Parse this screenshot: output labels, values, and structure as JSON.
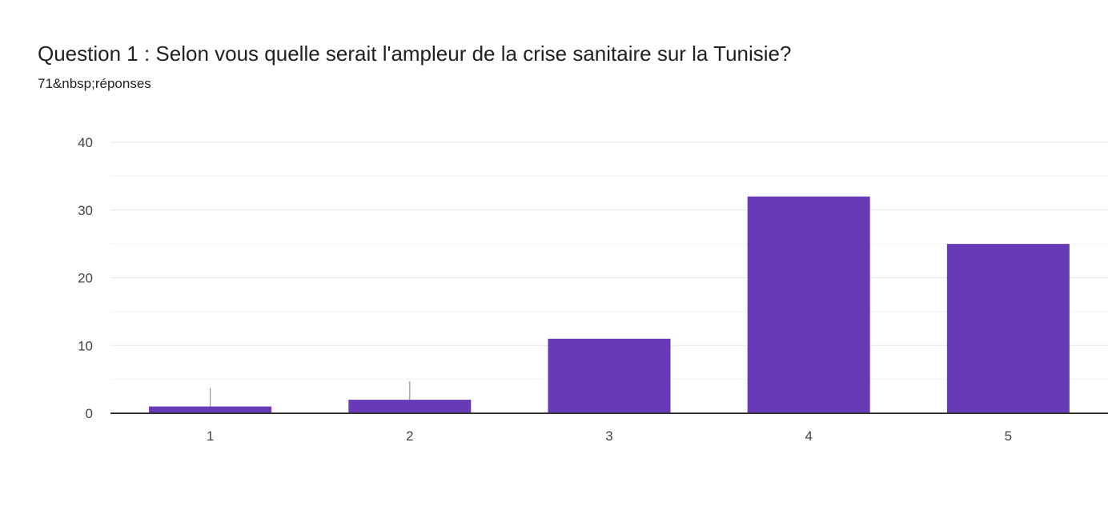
{
  "header": {
    "title": "Question 1 : Selon vous quelle serait l'ampleur de la crise sanitaire sur la Tunisie?",
    "subtitle": "71&nbsp;réponses"
  },
  "chart_data": {
    "type": "bar",
    "categories": [
      "1",
      "2",
      "3",
      "4",
      "5"
    ],
    "values": [
      1,
      2,
      11,
      32,
      25
    ],
    "ylim": [
      0,
      40
    ],
    "yticks": [
      0,
      10,
      20,
      30,
      40
    ],
    "grid": true,
    "bar_color": "#673ab7",
    "xlabel": "",
    "ylabel": ""
  }
}
